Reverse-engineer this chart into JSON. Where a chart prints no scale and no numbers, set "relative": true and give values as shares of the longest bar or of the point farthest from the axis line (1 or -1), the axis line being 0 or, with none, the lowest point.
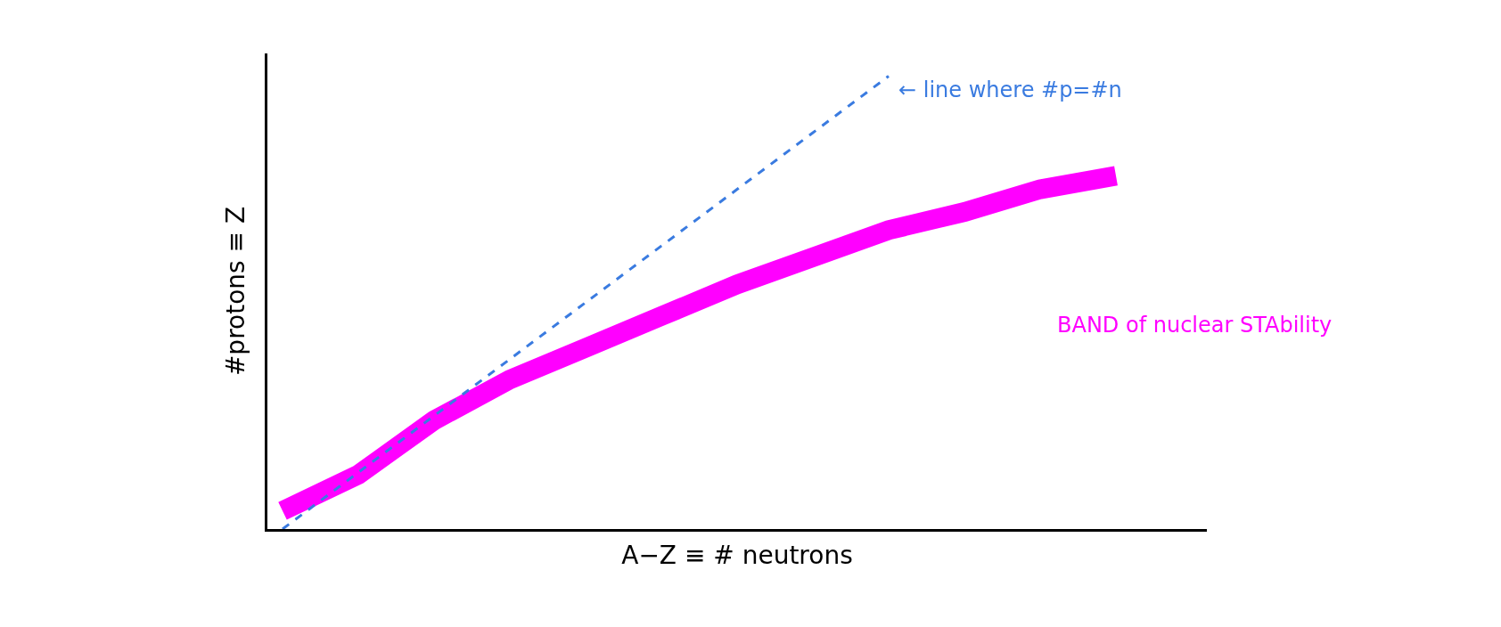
{
  "chart_data": {
    "type": "line",
    "relative": true,
    "xlabel": "A−Z ≡ # neutrons",
    "ylabel": "#protons ≡ Z",
    "categories": [
      null,
      null,
      null,
      null,
      null,
      null,
      null,
      null,
      null,
      null,
      null,
      null
    ],
    "series": [
      {
        "color": "#3a7be0",
        "line_style": "dashed",
        "values": [
          0,
          0.125,
          0.25,
          0.375,
          0.5,
          0.625,
          0.75,
          0.875,
          1.0,
          null,
          null,
          null
        ]
      },
      {
        "color": "#ff00ff",
        "values": [
          0.04,
          0.12,
          0.24,
          0.33,
          0.4,
          0.47,
          0.54,
          0.6,
          0.66,
          0.7,
          0.75,
          0.78
        ]
      }
    ],
    "annotations": [
      "← line where #p=#n",
      "BAND of nuclear STAbility"
    ],
    "legend": false
  }
}
